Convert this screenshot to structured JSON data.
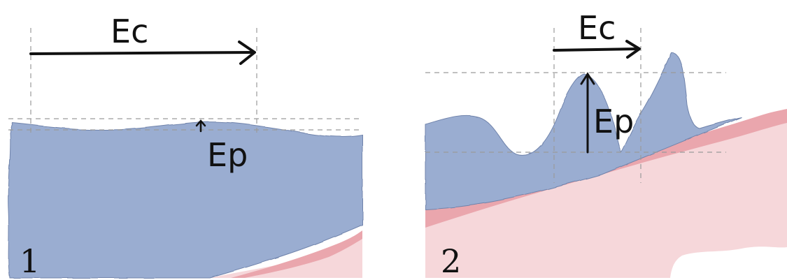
{
  "panels": [
    {
      "number": "1",
      "ec_label": "Ec",
      "ep_label": "Ep"
    },
    {
      "number": "2",
      "ec_label": "Ec",
      "ep_label": "Ep"
    }
  ],
  "colors": {
    "water": "#9aadd1",
    "water_edge": "#6f83ab",
    "earth_dark": "#eaa6ad",
    "earth_light": "#f6d7da",
    "dash": "#9a9a9a",
    "ink": "#111111"
  }
}
